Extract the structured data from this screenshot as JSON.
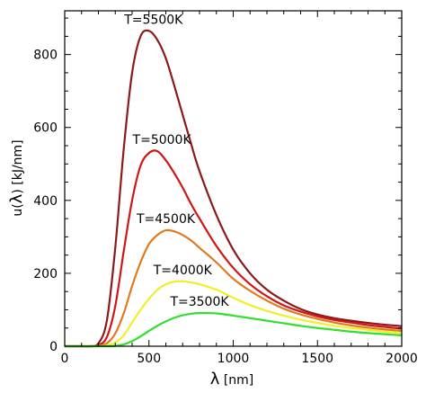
{
  "chart_data": {
    "type": "line",
    "title": "",
    "xlabel": {
      "symbol": "λ",
      "unit": " [nm]"
    },
    "ylabel": {
      "prefix": "u(",
      "symbol": "λ",
      "suffix": ") [kJ/nm]"
    },
    "xlim": [
      0,
      2000
    ],
    "ylim": [
      0,
      920
    ],
    "xticks": [
      0,
      500,
      1000,
      1500,
      2000
    ],
    "yticks": [
      0,
      200,
      400,
      600,
      800
    ],
    "grid": false,
    "legend": "none",
    "x": [
      0,
      100,
      150,
      200,
      250,
      300,
      350,
      400,
      450,
      500,
      550,
      600,
      650,
      700,
      750,
      800,
      900,
      1000,
      1100,
      1200,
      1300,
      1400,
      1500,
      1600,
      1700,
      1800,
      1900,
      2000
    ],
    "series": [
      {
        "name": "T=5500K",
        "color": "#8b1a1a",
        "values": [
          0,
          0,
          0,
          8,
          70,
          270,
          540,
          750,
          850,
          865,
          840,
          790,
          715,
          635,
          555,
          480,
          360,
          265,
          200,
          155,
          125,
          102,
          87,
          77,
          70,
          64,
          59,
          55
        ]
      },
      {
        "name": "T=5000K",
        "color": "#d11414",
        "values": [
          0,
          0,
          0,
          3,
          25,
          110,
          260,
          400,
          495,
          530,
          535,
          510,
          475,
          435,
          390,
          350,
          275,
          215,
          170,
          137,
          112,
          95,
          82,
          72,
          65,
          58,
          53,
          48
        ]
      },
      {
        "name": "T=4500K",
        "color": "#e07a1e",
        "values": [
          0,
          0,
          0,
          1,
          8,
          35,
          90,
          165,
          230,
          280,
          305,
          318,
          315,
          305,
          290,
          270,
          230,
          185,
          152,
          125,
          103,
          87,
          75,
          65,
          57,
          51,
          46,
          42
        ]
      },
      {
        "name": "T=4000K",
        "color": "#f0ef28",
        "values": [
          0,
          0,
          0,
          0,
          2,
          10,
          30,
          65,
          100,
          130,
          155,
          170,
          177,
          178,
          175,
          170,
          155,
          133,
          113,
          97,
          84,
          73,
          64,
          56,
          50,
          45,
          40,
          36
        ]
      },
      {
        "name": "T=3500K",
        "color": "#2fe02f",
        "values": [
          0,
          0,
          0,
          0,
          0,
          1,
          5,
          14,
          27,
          42,
          56,
          68,
          78,
          85,
          89,
          91,
          90,
          84,
          77,
          70,
          63,
          56,
          50,
          45,
          40,
          36,
          33,
          30
        ]
      }
    ]
  }
}
